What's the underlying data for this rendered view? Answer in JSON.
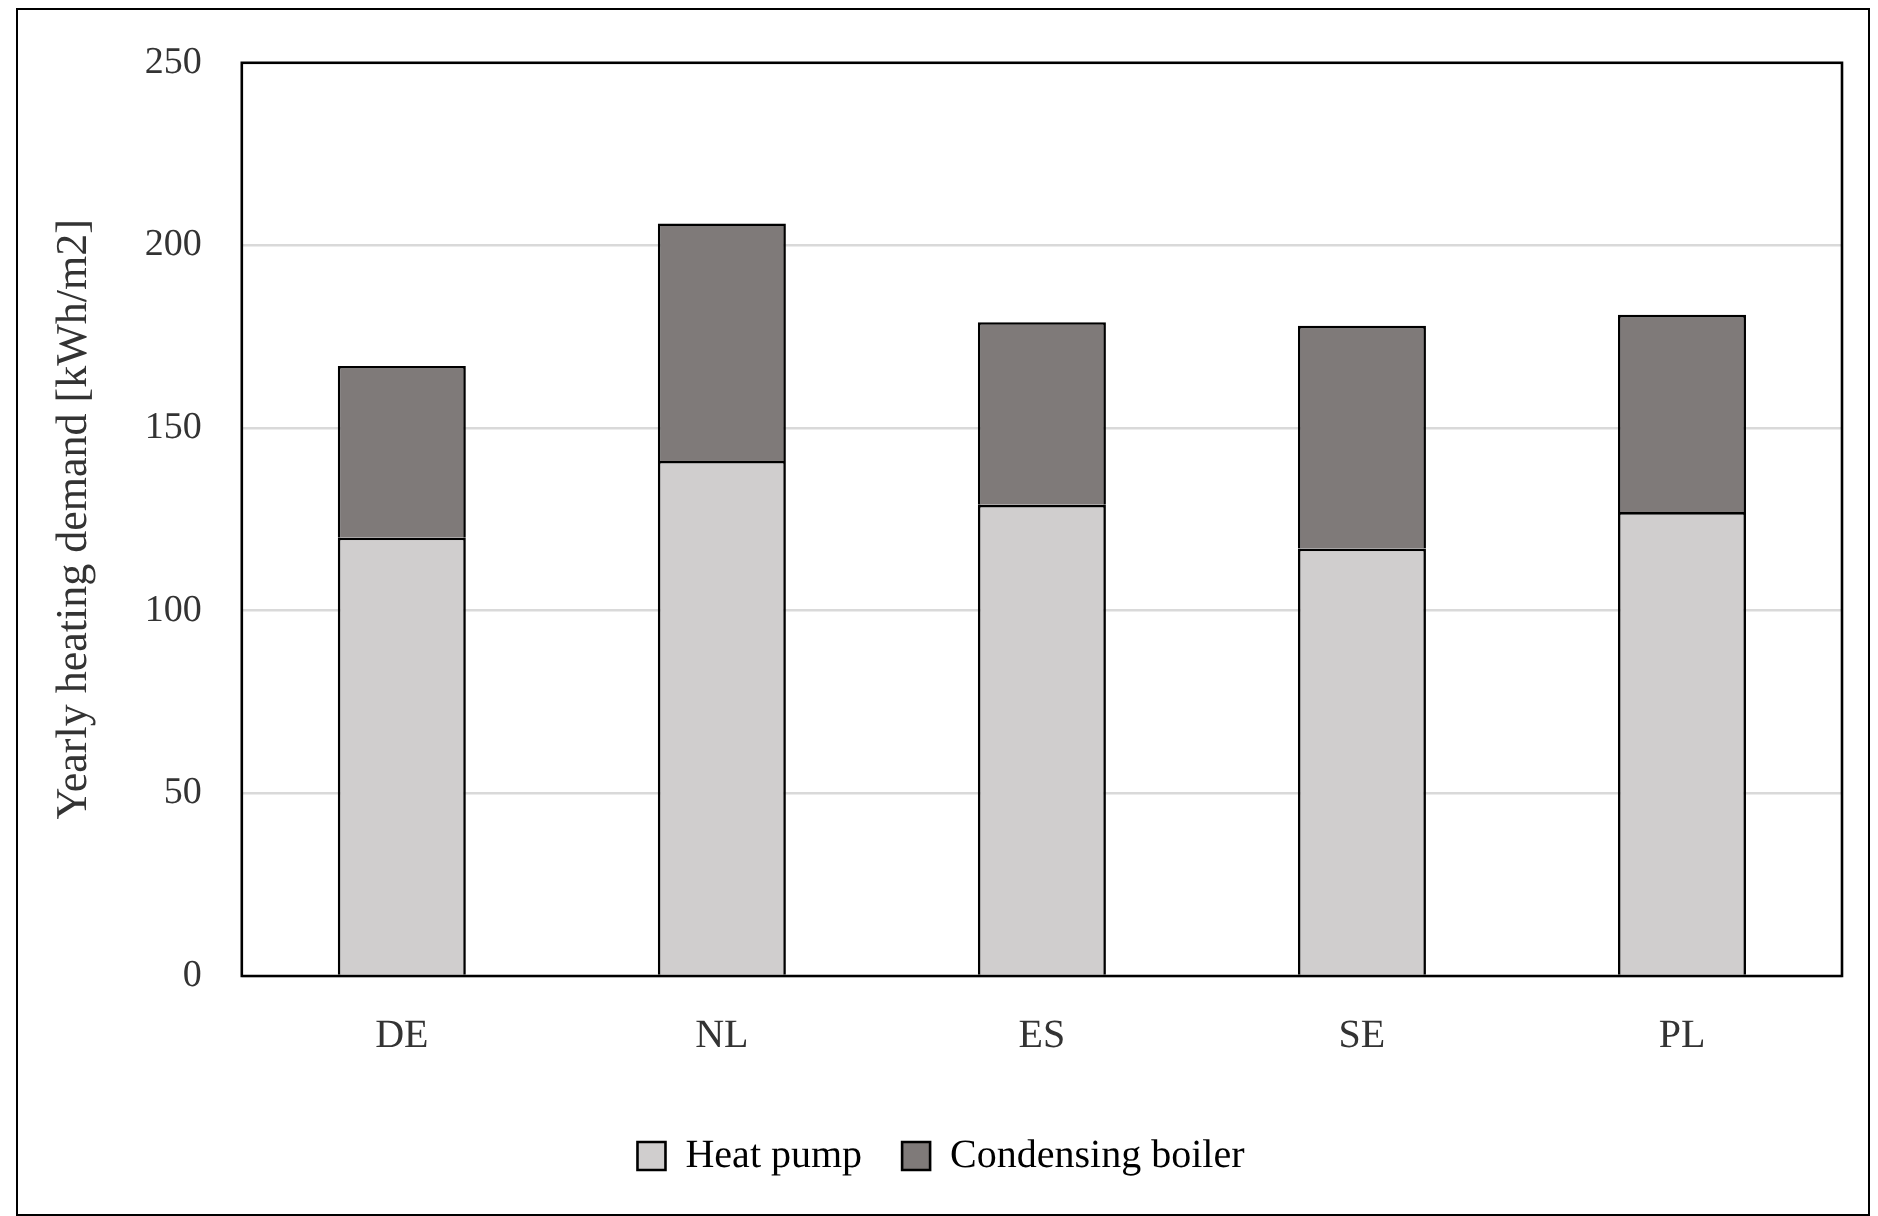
{
  "chart_data": {
    "type": "bar",
    "ylabel": "Yearly heating demand [kWh/m2]",
    "categories": [
      "DE",
      "NL",
      "ES",
      "SE",
      "PL"
    ],
    "stacked": true,
    "series": [
      {
        "name": "Heat pump",
        "color": "#d0cece",
        "values": [
          120,
          141,
          129,
          117,
          127
        ]
      },
      {
        "name": "Condensing boiler",
        "color": "#7f7a79",
        "values": [
          47,
          65,
          50,
          61,
          54
        ]
      }
    ],
    "ylim": [
      0,
      250
    ],
    "yticks": [
      0,
      50,
      100,
      150,
      200,
      250
    ],
    "grid": "y",
    "legend": "bottom"
  }
}
